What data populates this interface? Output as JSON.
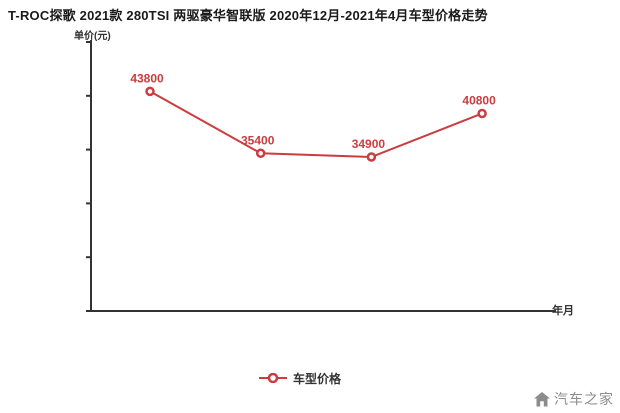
{
  "title": "T-ROC探歌 2021款 280TSI 两驱豪华智联版 2020年12月-2021年4月车型价格走势",
  "colors": {
    "accent": "#cc3b3e",
    "axis": "#333333",
    "title_text": "#1a1a1a",
    "watermark_text": "#8c8c8c"
  },
  "axis_labels": {
    "y": "单价(元)",
    "x": "年月"
  },
  "legend": {
    "label": "车型价格"
  },
  "watermark": {
    "text": "汽车之家",
    "icon": "house-logo-icon"
  },
  "chart_data": {
    "type": "line",
    "title": "T-ROC探歌 2021款 280TSI 两驱豪华智联版 2020年12月-2021年4月车型价格走势",
    "xlabel": "年月",
    "ylabel": "单价(元)",
    "x_tick_labels": [],
    "ylim": [
      14000,
      50500
    ],
    "yticks_count": 6,
    "grid": false,
    "legend_position": "bottom-center",
    "series": [
      {
        "name": "车型价格",
        "color": "#cc3b3e",
        "marker": "donut-circle",
        "values": [
          43800,
          35400,
          34900,
          40800
        ],
        "data_labels": [
          "43800",
          "35400",
          "34900",
          "40800"
        ]
      }
    ]
  }
}
